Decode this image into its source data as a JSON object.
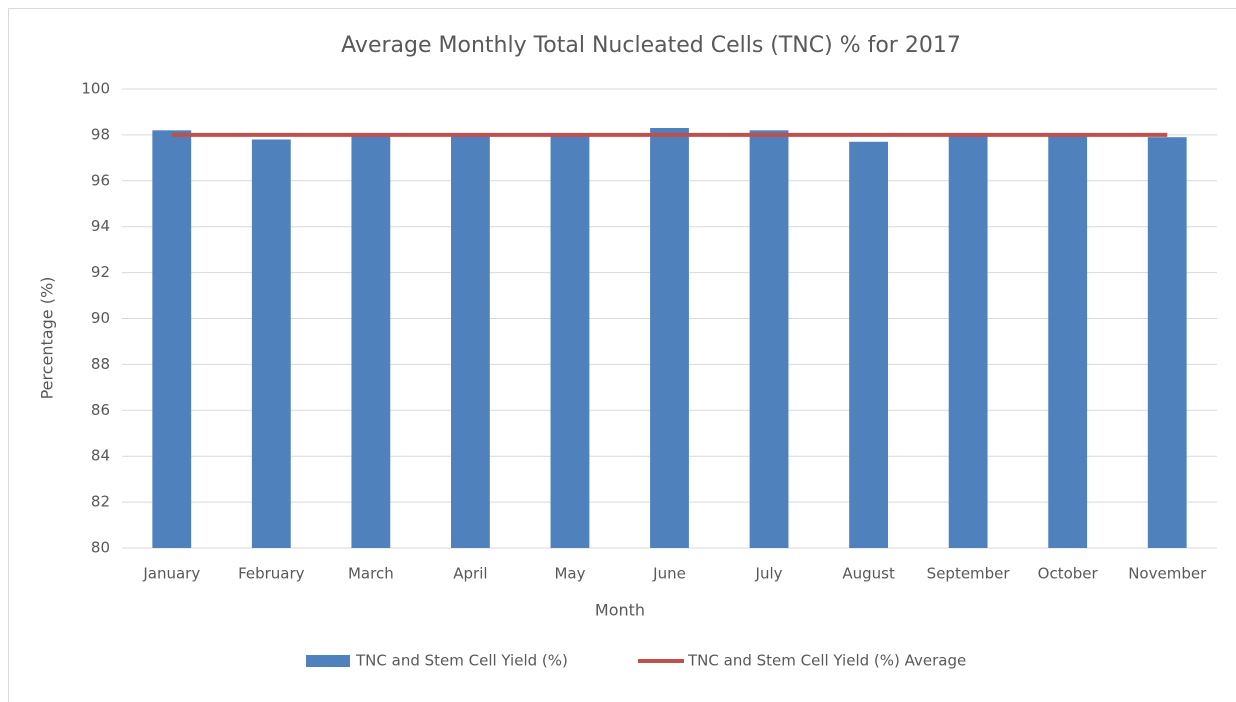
{
  "chart_data": {
    "type": "bar",
    "title": "Average Monthly Total Nucleated Cells (TNC) % for 2017",
    "x_label": "Month",
    "y_label": "Percentage (%)",
    "categories": [
      "January",
      "February",
      "March",
      "April",
      "May",
      "June",
      "July",
      "August",
      "September",
      "October",
      "November"
    ],
    "series": [
      {
        "name": "TNC and Stem Cell Yield (%)",
        "type": "bar",
        "color": "#4f81bd",
        "values": [
          98.2,
          97.8,
          98.0,
          98.0,
          98.0,
          98.3,
          98.2,
          97.7,
          98.0,
          98.0,
          97.9
        ]
      },
      {
        "name": "TNC and Stem Cell Yield (%) Average",
        "type": "line",
        "color": "#c0504d",
        "values": [
          98.0,
          98.0,
          98.0,
          98.0,
          98.0,
          98.0,
          98.0,
          98.0,
          98.0,
          98.0,
          98.0
        ]
      }
    ],
    "ylim": [
      80,
      100
    ],
    "yticks": [
      80,
      82,
      84,
      86,
      88,
      90,
      92,
      94,
      96,
      98,
      100
    ],
    "grid": true,
    "legend": "bottom"
  }
}
